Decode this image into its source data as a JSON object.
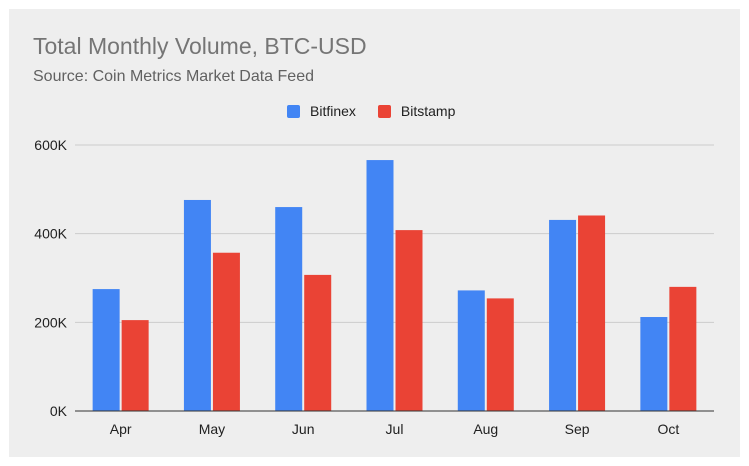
{
  "chart_data": {
    "type": "bar",
    "title": "Total Monthly Volume, BTC-USD",
    "subtitle": "Source: Coin Metrics Market Data Feed",
    "xlabel": "",
    "ylabel": "",
    "categories": [
      "Apr",
      "May",
      "Jun",
      "Jul",
      "Aug",
      "Sep",
      "Oct"
    ],
    "series": [
      {
        "name": "Bitfinex",
        "color": "#4285f4",
        "values": [
          275000,
          476000,
          460000,
          566000,
          272000,
          431000,
          212000
        ]
      },
      {
        "name": "Bitstamp",
        "color": "#ea4335",
        "values": [
          205000,
          357000,
          307000,
          408000,
          254000,
          441000,
          280000
        ]
      }
    ],
    "ylim": [
      0,
      600000
    ],
    "yticks": [
      0,
      200000,
      400000,
      600000
    ],
    "ytick_labels": [
      "0K",
      "200K",
      "400K",
      "600K"
    ],
    "grid": true,
    "legend_position": "top-center"
  }
}
